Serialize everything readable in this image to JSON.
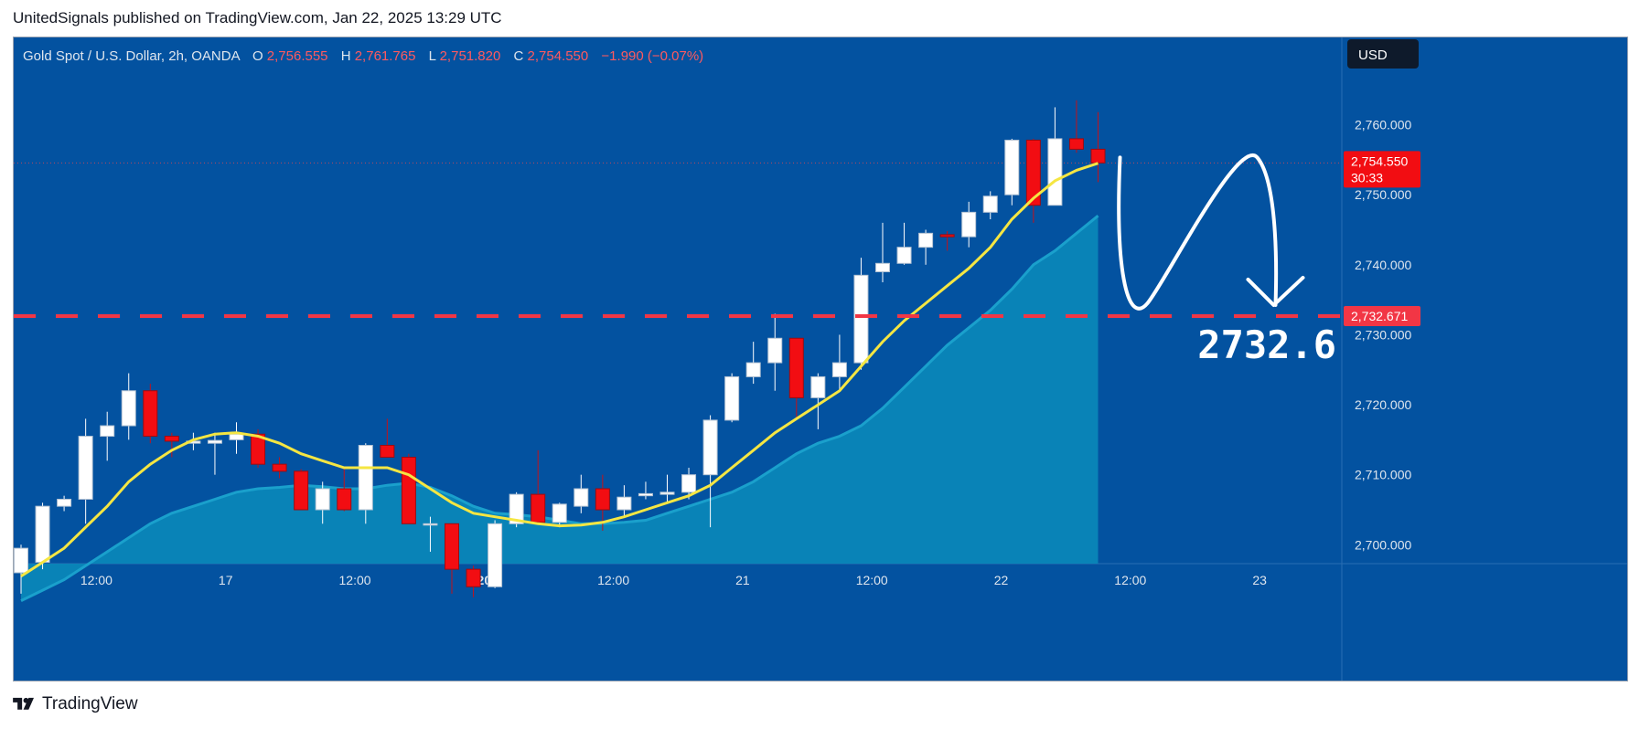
{
  "header": {
    "published_line": "UnitedSignals published on TradingView.com, Jan 22, 2025 13:29 UTC"
  },
  "footer": {
    "brand": "TradingView"
  },
  "legend": {
    "symbol": "Gold Spot / U.S. Dollar, 2h, OANDA",
    "o_label": "O",
    "o_value": "2,756.555",
    "h_label": "H",
    "h_value": "2,761.765",
    "l_label": "L",
    "l_value": "2,751.820",
    "c_label": "C",
    "c_value": "2,754.550",
    "change": "−1.990 (−0.07%)"
  },
  "currency_button": "USD",
  "annotation_text": "2732.6",
  "colors": {
    "background": "#0352a0",
    "axis_bg": "#0352a0",
    "up": "#ffffff",
    "down": "#f20d12",
    "ema_fast": "#f5e642",
    "ema_slow_fill": "#0a86b8",
    "ema_slow_line": "#1aa0cc",
    "level_line": "#f23645",
    "text_light": "#dfe6ee"
  },
  "chart_data": {
    "type": "candlestick",
    "symbol": "Gold Spot / U.S. Dollar",
    "interval": "2h",
    "source": "OANDA",
    "ylim": [
      2692,
      2768
    ],
    "y_ticks": [
      "2,700.000",
      "2,710.000",
      "2,720.000",
      "2,730.000",
      "2,740.000",
      "2,750.000",
      "2,760.000"
    ],
    "x_ticks": [
      "12:00",
      "17",
      "12:00",
      "20",
      "12:00",
      "21",
      "12:00",
      "22",
      "12:00",
      "23"
    ],
    "x_tick_bar_index": [
      3.5,
      9.5,
      15.5,
      21.5,
      27.5,
      33.5,
      39.5,
      45.5,
      51.5,
      57.5
    ],
    "bold_x_ticks": [
      "20"
    ],
    "candles": [
      {
        "o": 2696.0,
        "h": 2700.0,
        "l": 2693.0,
        "c": 2699.5
      },
      {
        "o": 2697.5,
        "h": 2706.0,
        "l": 2696.5,
        "c": 2705.5
      },
      {
        "o": 2705.5,
        "h": 2707.0,
        "l": 2704.8,
        "c": 2706.5
      },
      {
        "o": 2706.5,
        "h": 2718.0,
        "l": 2703.0,
        "c": 2715.5
      },
      {
        "o": 2715.5,
        "h": 2719.0,
        "l": 2712.0,
        "c": 2717.0
      },
      {
        "o": 2717.0,
        "h": 2724.5,
        "l": 2715.0,
        "c": 2722.0
      },
      {
        "o": 2722.0,
        "h": 2723.0,
        "l": 2714.5,
        "c": 2715.5
      },
      {
        "o": 2715.5,
        "h": 2716.0,
        "l": 2712.5,
        "c": 2714.8
      },
      {
        "o": 2714.5,
        "h": 2716.0,
        "l": 2713.5,
        "c": 2714.8
      },
      {
        "o": 2714.5,
        "h": 2716.0,
        "l": 2710.0,
        "c": 2714.9
      },
      {
        "o": 2715.0,
        "h": 2717.5,
        "l": 2713.0,
        "c": 2715.8
      },
      {
        "o": 2715.8,
        "h": 2716.5,
        "l": 2711.0,
        "c": 2711.5
      },
      {
        "o": 2711.5,
        "h": 2712.5,
        "l": 2709.5,
        "c": 2710.5
      },
      {
        "o": 2710.5,
        "h": 2710.8,
        "l": 2705.0,
        "c": 2705.0
      },
      {
        "o": 2705.0,
        "h": 2709.0,
        "l": 2703.0,
        "c": 2708.0
      },
      {
        "o": 2708.0,
        "h": 2711.0,
        "l": 2704.8,
        "c": 2705.0
      },
      {
        "o": 2705.0,
        "h": 2714.5,
        "l": 2703.0,
        "c": 2714.2
      },
      {
        "o": 2714.2,
        "h": 2718.0,
        "l": 2712.5,
        "c": 2712.5
      },
      {
        "o": 2712.5,
        "h": 2713.0,
        "l": 2703.0,
        "c": 2703.0
      },
      {
        "o": 2703.0,
        "h": 2704.0,
        "l": 2699.0,
        "c": 2703.0
      },
      {
        "o": 2703.0,
        "h": 2703.0,
        "l": 2693.0,
        "c": 2696.5
      },
      {
        "o": 2696.5,
        "h": 2697.0,
        "l": 2692.5,
        "c": 2694.0
      },
      {
        "o": 2694.0,
        "h": 2703.5,
        "l": 2693.8,
        "c": 2703.0
      },
      {
        "o": 2703.0,
        "h": 2707.5,
        "l": 2702.5,
        "c": 2707.2
      },
      {
        "o": 2707.2,
        "h": 2713.5,
        "l": 2703.0,
        "c": 2703.2
      },
      {
        "o": 2703.2,
        "h": 2706.0,
        "l": 2702.5,
        "c": 2705.8
      },
      {
        "o": 2705.5,
        "h": 2710.0,
        "l": 2704.5,
        "c": 2708.0
      },
      {
        "o": 2708.0,
        "h": 2710.0,
        "l": 2702.0,
        "c": 2705.0
      },
      {
        "o": 2705.0,
        "h": 2708.5,
        "l": 2704.0,
        "c": 2706.8
      },
      {
        "o": 2707.0,
        "h": 2709.0,
        "l": 2706.5,
        "c": 2707.3
      },
      {
        "o": 2707.2,
        "h": 2710.0,
        "l": 2706.0,
        "c": 2707.5
      },
      {
        "o": 2707.5,
        "h": 2711.0,
        "l": 2706.5,
        "c": 2710.0
      },
      {
        "o": 2710.0,
        "h": 2718.5,
        "l": 2702.5,
        "c": 2717.8
      },
      {
        "o": 2717.8,
        "h": 2724.5,
        "l": 2717.5,
        "c": 2724.0
      },
      {
        "o": 2724.0,
        "h": 2729.0,
        "l": 2723.0,
        "c": 2726.0
      },
      {
        "o": 2726.0,
        "h": 2733.0,
        "l": 2722.0,
        "c": 2729.5
      },
      {
        "o": 2729.5,
        "h": 2729.5,
        "l": 2718.0,
        "c": 2721.0
      },
      {
        "o": 2721.0,
        "h": 2724.5,
        "l": 2716.5,
        "c": 2724.0
      },
      {
        "o": 2724.0,
        "h": 2730.0,
        "l": 2722.0,
        "c": 2726.0
      },
      {
        "o": 2726.0,
        "h": 2741.0,
        "l": 2725.0,
        "c": 2738.5
      },
      {
        "o": 2739.0,
        "h": 2746.0,
        "l": 2737.5,
        "c": 2740.2
      },
      {
        "o": 2740.2,
        "h": 2746.0,
        "l": 2740.0,
        "c": 2742.5
      },
      {
        "o": 2742.5,
        "h": 2745.0,
        "l": 2740.0,
        "c": 2744.5
      },
      {
        "o": 2744.3,
        "h": 2744.8,
        "l": 2742.0,
        "c": 2744.0
      },
      {
        "o": 2744.0,
        "h": 2749.0,
        "l": 2742.5,
        "c": 2747.5
      },
      {
        "o": 2747.5,
        "h": 2750.5,
        "l": 2746.5,
        "c": 2749.8
      },
      {
        "o": 2750.0,
        "h": 2758.0,
        "l": 2748.5,
        "c": 2757.8
      },
      {
        "o": 2757.8,
        "h": 2758.0,
        "l": 2746.0,
        "c": 2748.5
      },
      {
        "o": 2748.5,
        "h": 2762.5,
        "l": 2748.5,
        "c": 2758.0
      },
      {
        "o": 2758.0,
        "h": 2763.5,
        "l": 2756.0,
        "c": 2756.5
      },
      {
        "o": 2756.5,
        "h": 2761.8,
        "l": 2751.8,
        "c": 2754.55
      }
    ],
    "ema_fast": [
      2695.5,
      2697.5,
      2699.5,
      2702.5,
      2705.5,
      2709.0,
      2711.5,
      2713.5,
      2715.0,
      2715.8,
      2716.0,
      2715.5,
      2714.5,
      2713.0,
      2712.0,
      2711.0,
      2711.0,
      2711.0,
      2710.0,
      2708.0,
      2706.0,
      2704.5,
      2704.0,
      2703.5,
      2703.0,
      2702.7,
      2702.8,
      2703.2,
      2704.0,
      2705.0,
      2706.0,
      2707.0,
      2708.5,
      2711.0,
      2713.5,
      2716.0,
      2718.0,
      2720.0,
      2722.0,
      2725.5,
      2729.0,
      2732.0,
      2734.5,
      2737.0,
      2739.5,
      2742.5,
      2746.5,
      2749.5,
      2752.0,
      2753.5,
      2754.5
    ],
    "ema_slow": [
      2692.0,
      2693.5,
      2695.0,
      2697.0,
      2699.0,
      2701.0,
      2703.0,
      2704.5,
      2705.5,
      2706.5,
      2707.5,
      2708.0,
      2708.2,
      2708.5,
      2708.3,
      2708.0,
      2708.0,
      2708.5,
      2708.8,
      2708.2,
      2707.0,
      2705.5,
      2704.5,
      2704.3,
      2704.0,
      2703.5,
      2703.0,
      2703.0,
      2703.2,
      2703.5,
      2704.5,
      2705.5,
      2706.5,
      2707.5,
      2709.0,
      2711.0,
      2713.0,
      2714.5,
      2715.5,
      2717.0,
      2719.5,
      2722.5,
      2725.5,
      2728.5,
      2731.0,
      2733.5,
      2736.5,
      2740.0,
      2742.0,
      2744.5,
      2747.0
    ],
    "series": [
      {
        "name": "Gold Spot / U.S. Dollar"
      }
    ],
    "current_price_label": "2,754.550",
    "countdown_label": "30:33",
    "level_price_label": "2,732.671",
    "level_value": 2732.671,
    "current_value": 2754.55,
    "grid": false
  }
}
